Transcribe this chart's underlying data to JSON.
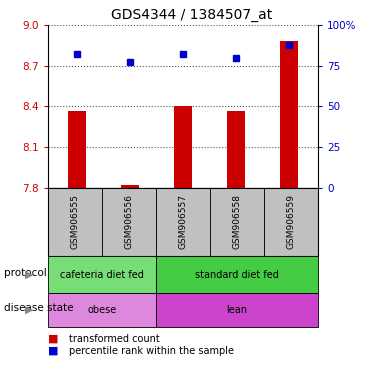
{
  "title": "GDS4344 / 1384507_at",
  "samples": [
    "GSM906555",
    "GSM906556",
    "GSM906557",
    "GSM906558",
    "GSM906559"
  ],
  "bar_values": [
    8.37,
    7.82,
    8.4,
    8.37,
    8.88
  ],
  "percentile_values": [
    82,
    77,
    82,
    80,
    88
  ],
  "ylim_left": [
    7.8,
    9.0
  ],
  "ylim_right": [
    0,
    100
  ],
  "yticks_left": [
    7.8,
    8.1,
    8.4,
    8.7,
    9.0
  ],
  "yticks_right": [
    0,
    25,
    50,
    75,
    100
  ],
  "bar_color": "#cc0000",
  "dot_color": "#0000cc",
  "protocol_groups": [
    {
      "label": "cafeteria diet fed",
      "span": [
        0,
        1
      ],
      "color": "#77dd77"
    },
    {
      "label": "standard diet fed",
      "span": [
        2,
        4
      ],
      "color": "#44cc44"
    }
  ],
  "disease_groups": [
    {
      "label": "obese",
      "span": [
        0,
        1
      ],
      "color": "#dd88dd"
    },
    {
      "label": "lean",
      "span": [
        2,
        4
      ],
      "color": "#cc44cc"
    }
  ],
  "sample_box_color": "#c0c0c0",
  "dotted_line_color": "#555555",
  "ylabel_left_color": "#cc0000",
  "ylabel_right_color": "#0000cc",
  "background_color": "#ffffff",
  "legend_red_label": "transformed count",
  "legend_blue_label": "percentile rank within the sample",
  "protocol_label": "protocol",
  "disease_label": "disease state",
  "arrow_color": "#888888"
}
